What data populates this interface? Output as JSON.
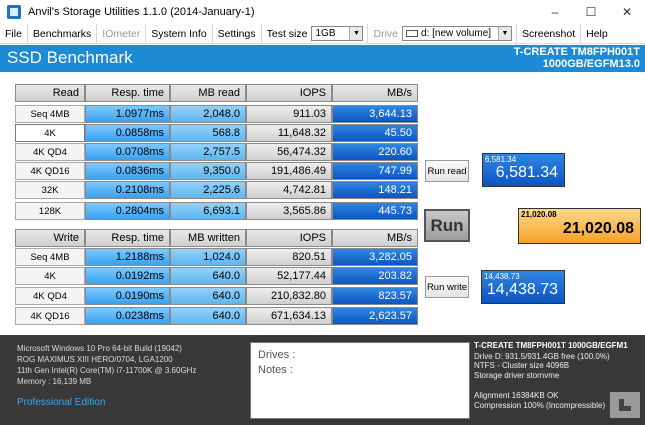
{
  "window": {
    "title": "Anvil's Storage Utilities 1.1.0 (2014-January-1)",
    "minimize": "–",
    "maximize": "☐",
    "close": "✕"
  },
  "menu": {
    "file": "File",
    "benchmarks": "Benchmarks",
    "iometer": "IOmeter",
    "system_info": "System Info",
    "settings": "Settings",
    "test_size_label": "Test size",
    "test_size_value": "1GB",
    "drive_label": "Drive",
    "drive_value": "d: [new volume]",
    "screenshot": "Screenshot",
    "help": "Help"
  },
  "header": {
    "title": "SSD Benchmark",
    "model_line1": "T-CREATE TM8FPH001T",
    "model_line2": "1000GB/EGFM13.0"
  },
  "read": {
    "headers": [
      "Read",
      "Resp. time",
      "MB read",
      "IOPS",
      "MB/s"
    ],
    "rows": [
      {
        "label": "Seq 4MB",
        "time": "1.0977ms",
        "mb": "2,048.0",
        "iops": "911.03",
        "mbs": "3,644.13"
      },
      {
        "label": "4K",
        "time": "0.0858ms",
        "mb": "568.8",
        "iops": "11,648.32",
        "mbs": "45.50"
      },
      {
        "label": "4K QD4",
        "time": "0.0708ms",
        "mb": "2,757.5",
        "iops": "56,474.32",
        "mbs": "220.60"
      },
      {
        "label": "4K QD16",
        "time": "0.0836ms",
        "mb": "9,350.0",
        "iops": "191,486.49",
        "mbs": "747.99"
      },
      {
        "label": "32K",
        "time": "0.2108ms",
        "mb": "2,225.6",
        "iops": "4,742.81",
        "mbs": "148.21"
      },
      {
        "label": "128K",
        "time": "0.2804ms",
        "mb": "6,693.1",
        "iops": "3,565.86",
        "mbs": "445.73"
      }
    ]
  },
  "write": {
    "headers": [
      "Write",
      "Resp. time",
      "MB written",
      "IOPS",
      "MB/s"
    ],
    "rows": [
      {
        "label": "Seq 4MB",
        "time": "1.2188ms",
        "mb": "1,024.0",
        "iops": "820.51",
        "mbs": "3,282.05"
      },
      {
        "label": "4K",
        "time": "0.0192ms",
        "mb": "640.0",
        "iops": "52,177.44",
        "mbs": "203.82"
      },
      {
        "label": "4K QD4",
        "time": "0.0190ms",
        "mb": "640.0",
        "iops": "210,832.80",
        "mbs": "823.57"
      },
      {
        "label": "4K QD16",
        "time": "0.0238ms",
        "mb": "640.0",
        "iops": "671,634.13",
        "mbs": "2,623.57"
      }
    ]
  },
  "buttons": {
    "run_read": "Run read",
    "run": "Run",
    "run_write": "Run write"
  },
  "scores": {
    "read_small": "6,581.34",
    "read_big": "6,581.34",
    "total_small": "21,020.08",
    "total_big": "21,020.08",
    "write_small": "14,438.73",
    "write_big": "14,438.73"
  },
  "footer": {
    "sys_lines": [
      "Microsoft Windows 10 Pro 64-bit Build (19042)",
      "ROG MAXIMUS XIII HERO/0704, LGA1200",
      "11th Gen Intel(R) Core(TM) i7-11700K @ 3.60GHz",
      "Memory : 16,139 MB"
    ],
    "edition": "Professional Edition",
    "notes_drives": "Drives :",
    "notes_notes": "Notes :",
    "drive_title": "T-CREATE TM8FPH001T 1000GB/EGFM1",
    "drive_lines": [
      "Drive D: 931.5/931.4GB free (100.0%)",
      "NTFS - Cluster size 4096B",
      "Storage driver   stornvme"
    ],
    "align_lines": [
      "Alignment 16384KB OK",
      "Compression 100% (Incompressible)"
    ]
  },
  "colors": {
    "header_band": "#1d8ad6",
    "mbs_cell": "#0c55c2",
    "total_score": "#f5a12a",
    "footer": "#383838"
  }
}
